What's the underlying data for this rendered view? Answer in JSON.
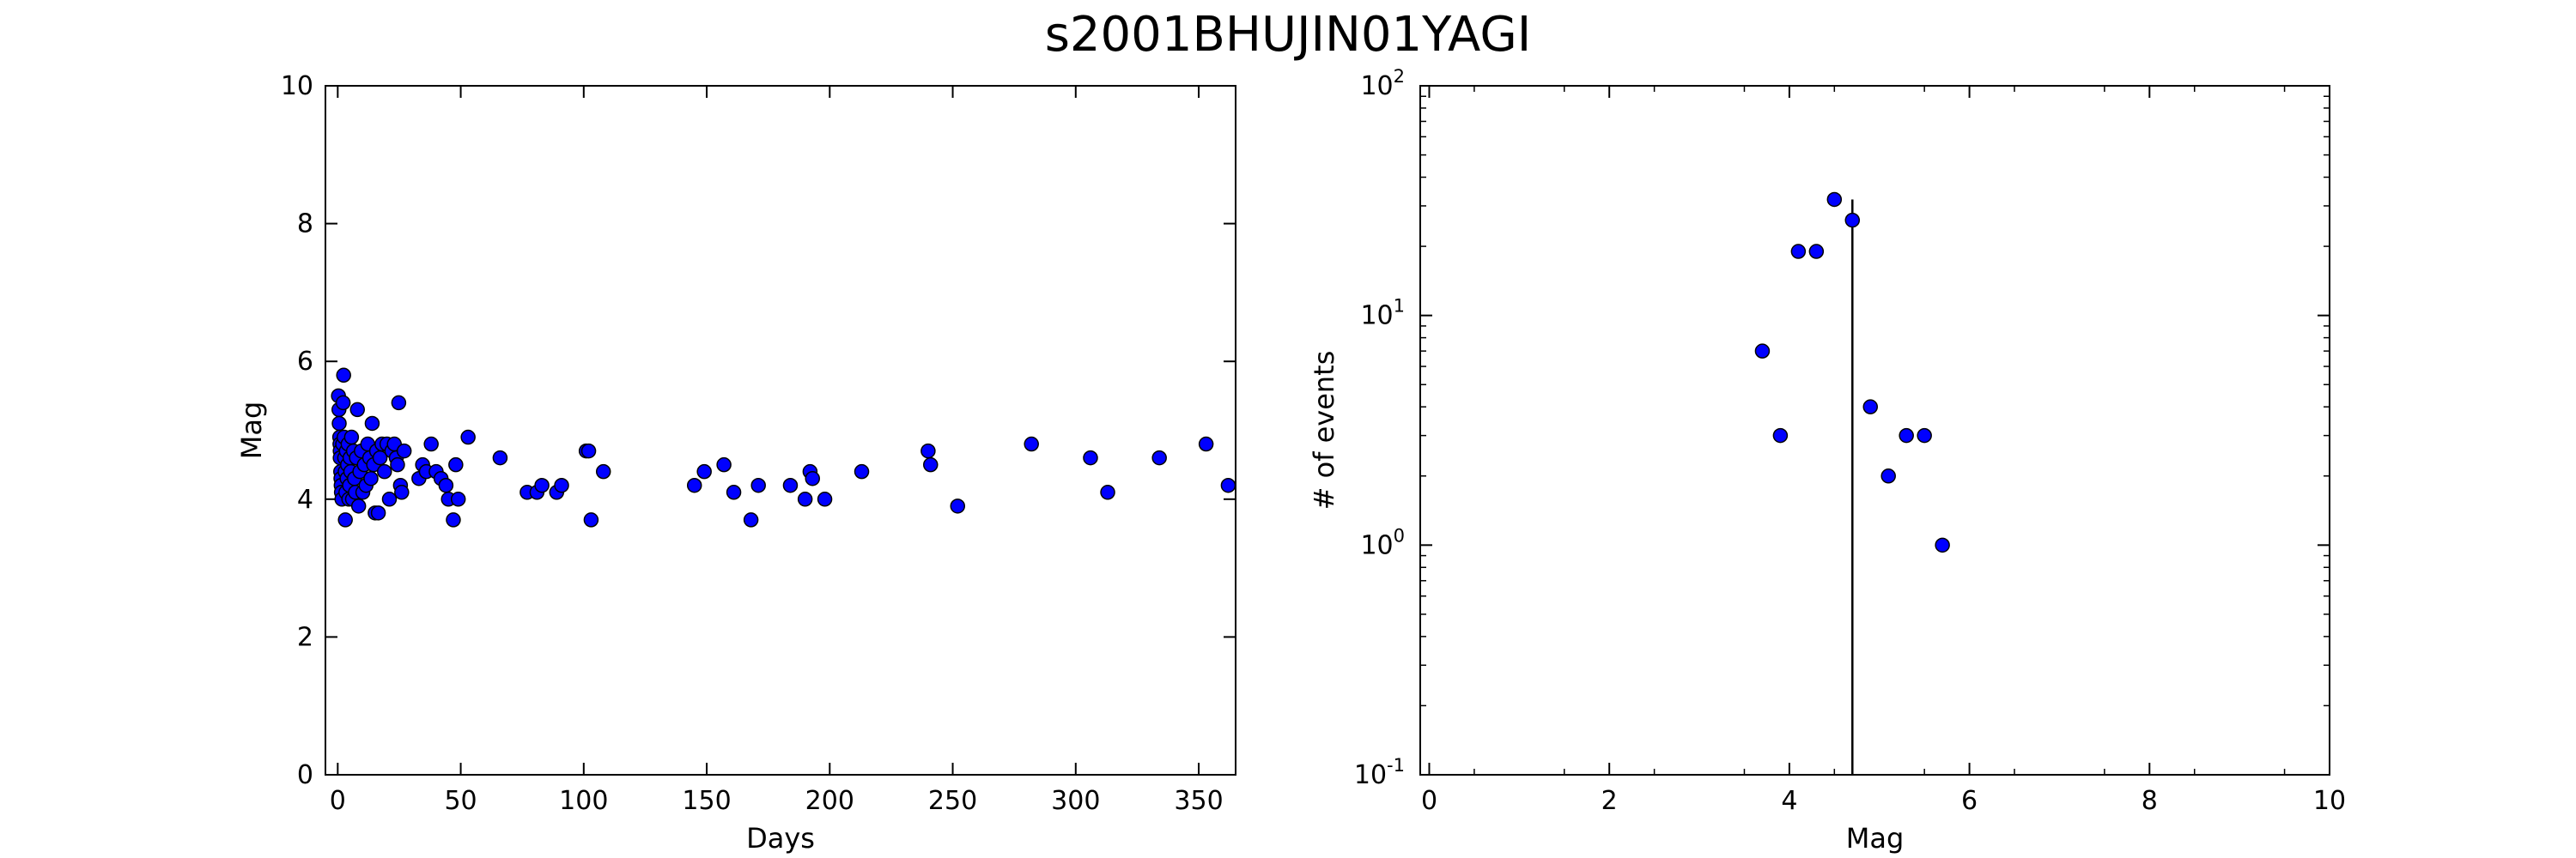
{
  "title": "s2001BHUJIN01YAGI",
  "chart_data": [
    {
      "type": "scatter",
      "xlabel": "Days",
      "ylabel": "Mag",
      "xlim": [
        -5,
        365
      ],
      "ylim": [
        0,
        10
      ],
      "xticks": [
        0,
        50,
        100,
        150,
        200,
        250,
        300,
        350
      ],
      "yticks": [
        0,
        2,
        4,
        6,
        8,
        10
      ],
      "grid": false,
      "marker_color": "#0000ff",
      "points": [
        [
          0.3,
          5.5
        ],
        [
          0.5,
          5.3
        ],
        [
          0.6,
          5.1
        ],
        [
          0.8,
          4.9
        ],
        [
          0.9,
          4.8
        ],
        [
          1.0,
          4.7
        ],
        [
          1.0,
          4.6
        ],
        [
          1.2,
          4.4
        ],
        [
          1.3,
          4.3
        ],
        [
          1.4,
          4.2
        ],
        [
          1.5,
          4.1
        ],
        [
          1.7,
          4.0
        ],
        [
          2.0,
          4.8
        ],
        [
          2.2,
          5.4
        ],
        [
          2.4,
          5.8
        ],
        [
          2.6,
          4.9
        ],
        [
          2.8,
          4.6
        ],
        [
          3.0,
          4.4
        ],
        [
          3.1,
          3.7
        ],
        [
          3.3,
          4.1
        ],
        [
          3.5,
          4.7
        ],
        [
          3.8,
          4.3
        ],
        [
          4.0,
          4.5
        ],
        [
          4.2,
          4.8
        ],
        [
          4.5,
          4.0
        ],
        [
          4.8,
          4.2
        ],
        [
          5.0,
          4.6
        ],
        [
          5.3,
          4.4
        ],
        [
          5.6,
          4.9
        ],
        [
          6.0,
          4.0
        ],
        [
          6.4,
          4.7
        ],
        [
          6.8,
          4.3
        ],
        [
          7.2,
          4.1
        ],
        [
          7.6,
          4.6
        ],
        [
          8.0,
          5.3
        ],
        [
          8.5,
          3.9
        ],
        [
          9.0,
          4.4
        ],
        [
          9.6,
          4.7
        ],
        [
          10.2,
          4.1
        ],
        [
          10.8,
          4.5
        ],
        [
          11.5,
          4.2
        ],
        [
          12.2,
          4.8
        ],
        [
          13.0,
          4.6
        ],
        [
          13.5,
          4.3
        ],
        [
          14.0,
          5.1
        ],
        [
          14.6,
          4.5
        ],
        [
          15.2,
          3.8
        ],
        [
          15.8,
          4.7
        ],
        [
          16.5,
          3.8
        ],
        [
          17.2,
          4.6
        ],
        [
          18.0,
          4.8
        ],
        [
          19.0,
          4.4
        ],
        [
          20.0,
          4.8
        ],
        [
          21.0,
          4.0
        ],
        [
          22.0,
          4.7
        ],
        [
          23.0,
          4.8
        ],
        [
          23.8,
          4.6
        ],
        [
          24.3,
          4.5
        ],
        [
          24.8,
          5.4
        ],
        [
          25.5,
          4.2
        ],
        [
          26.0,
          4.1
        ],
        [
          27.0,
          4.7
        ],
        [
          33.0,
          4.3
        ],
        [
          34.5,
          4.5
        ],
        [
          36.0,
          4.4
        ],
        [
          38.0,
          4.8
        ],
        [
          40.0,
          4.4
        ],
        [
          42.0,
          4.3
        ],
        [
          44.0,
          4.2
        ],
        [
          45.0,
          4.0
        ],
        [
          47.0,
          3.7
        ],
        [
          48.0,
          4.5
        ],
        [
          49.0,
          4.0
        ],
        [
          53.0,
          4.9
        ],
        [
          66.0,
          4.6
        ],
        [
          77.0,
          4.1
        ],
        [
          81.0,
          4.1
        ],
        [
          83.0,
          4.2
        ],
        [
          89.0,
          4.1
        ],
        [
          91.0,
          4.2
        ],
        [
          101.0,
          4.7
        ],
        [
          102.0,
          4.7
        ],
        [
          103.0,
          3.7
        ],
        [
          108.0,
          4.4
        ],
        [
          145.0,
          4.2
        ],
        [
          149.0,
          4.4
        ],
        [
          157.0,
          4.5
        ],
        [
          161.0,
          4.1
        ],
        [
          168.0,
          3.7
        ],
        [
          171.0,
          4.2
        ],
        [
          184.0,
          4.2
        ],
        [
          190.0,
          4.0
        ],
        [
          192.0,
          4.4
        ],
        [
          193.0,
          4.3
        ],
        [
          198.0,
          4.0
        ],
        [
          213.0,
          4.4
        ],
        [
          240.0,
          4.7
        ],
        [
          241.0,
          4.5
        ],
        [
          252.0,
          3.9
        ],
        [
          282.0,
          4.8
        ],
        [
          306.0,
          4.6
        ],
        [
          313.0,
          4.1
        ],
        [
          334.0,
          4.6
        ],
        [
          353.0,
          4.8
        ],
        [
          362.0,
          4.2
        ]
      ]
    },
    {
      "type": "scatter",
      "xlabel": "Mag",
      "ylabel": "# of events",
      "xlim": [
        -0.1,
        10
      ],
      "ylim": [
        0.1,
        100
      ],
      "yscale": "log",
      "xticks": [
        0,
        2,
        4,
        6,
        8,
        10
      ],
      "yticks": [
        {
          "base": "10",
          "exp": "2",
          "value": 100
        },
        {
          "base": "10",
          "exp": "1",
          "value": 10
        },
        {
          "base": "10",
          "exp": "0",
          "value": 1
        },
        {
          "base": "10",
          "exp": "-1",
          "value": 0.1
        }
      ],
      "grid": false,
      "marker_color": "#0000ff",
      "points": [
        [
          3.7,
          7
        ],
        [
          3.9,
          3
        ],
        [
          4.1,
          19
        ],
        [
          4.3,
          19
        ],
        [
          4.5,
          32
        ],
        [
          4.7,
          26
        ],
        [
          4.9,
          4
        ],
        [
          5.1,
          2
        ],
        [
          5.3,
          3
        ],
        [
          5.5,
          3
        ],
        [
          5.7,
          1
        ]
      ],
      "vline": {
        "x": 4.7,
        "y_top": 32
      }
    }
  ]
}
